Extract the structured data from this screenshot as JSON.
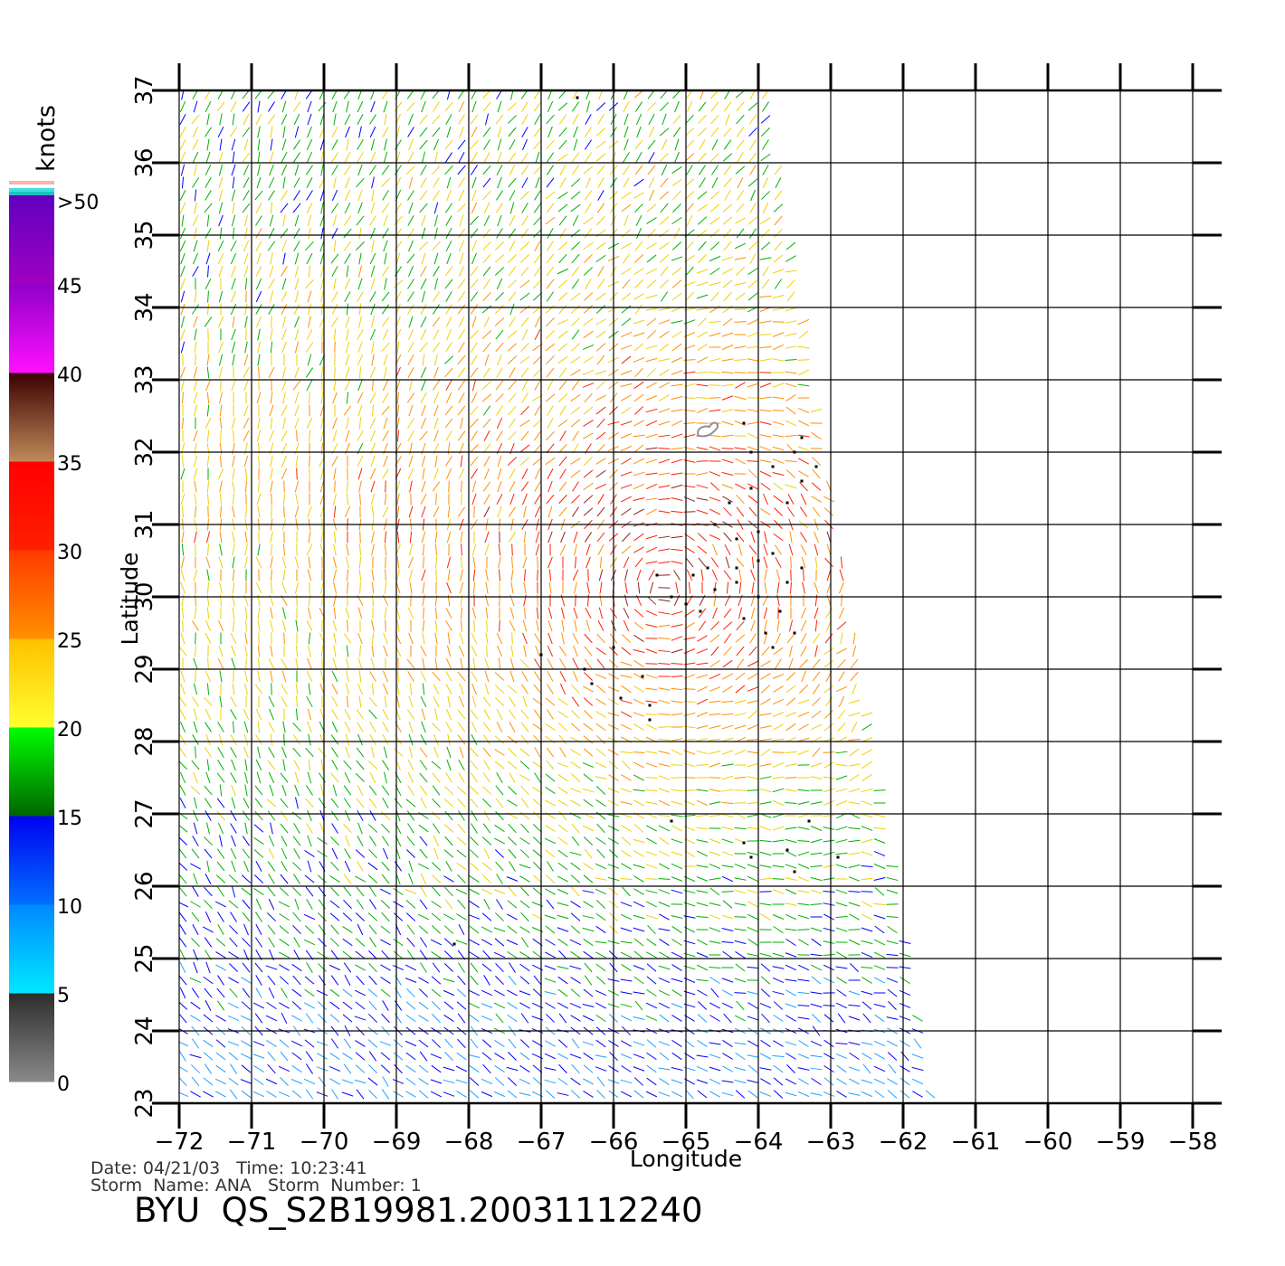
{
  "map": {
    "lon_range": [
      -72,
      -58
    ],
    "lat_range": [
      23,
      37
    ],
    "x_ticks": [
      "-72",
      "-71",
      "-70",
      "-69",
      "-68",
      "-67",
      "-66",
      "-65",
      "-64",
      "-63",
      "-62",
      "-61",
      "-60",
      "-59",
      "-58"
    ],
    "y_ticks": [
      "23",
      "24",
      "25",
      "26",
      "27",
      "28",
      "29",
      "30",
      "31",
      "32",
      "33",
      "34",
      "35",
      "36",
      "37"
    ],
    "xlabel": "Longitude",
    "ylabel": "Latitude",
    "swath_corners_lonlat": [
      [
        -72,
        37
      ],
      [
        -63.9,
        37
      ],
      [
        -61.6,
        23
      ],
      [
        -72,
        23
      ]
    ],
    "storm_center_lonlat": [
      -65.3,
      30.1
    ],
    "island_outline_lonlat": [
      -64.7,
      32.3
    ],
    "flagged_points_lonlat": [
      [
        -66.5,
        36.9
      ],
      [
        -68.2,
        25.2
      ],
      [
        -65.2,
        26.9
      ],
      [
        -64.2,
        26.6
      ],
      [
        -63.6,
        26.5
      ],
      [
        -63.3,
        26.9
      ],
      [
        -62.9,
        26.4
      ],
      [
        -63.5,
        26.2
      ],
      [
        -64.1,
        26.4
      ],
      [
        -66.0,
        29.3
      ],
      [
        -67.0,
        29.2
      ],
      [
        -66.4,
        29.0
      ],
      [
        -66.3,
        28.8
      ],
      [
        -65.9,
        28.6
      ],
      [
        -65.6,
        28.9
      ],
      [
        -65.5,
        28.5
      ],
      [
        -65.5,
        28.3
      ],
      [
        -64.2,
        32.4
      ],
      [
        -63.4,
        32.2
      ],
      [
        -63.8,
        31.8
      ],
      [
        -64.1,
        32.0
      ],
      [
        -63.5,
        32.0
      ],
      [
        -63.2,
        31.8
      ],
      [
        -64.1,
        31.5
      ],
      [
        -63.6,
        31.3
      ],
      [
        -63.4,
        31.6
      ],
      [
        -64.4,
        31.3
      ],
      [
        -64.6,
        31.0
      ],
      [
        -64.3,
        30.8
      ],
      [
        -64.0,
        30.9
      ],
      [
        -63.8,
        30.6
      ],
      [
        -64.0,
        30.5
      ],
      [
        -64.3,
        30.4
      ],
      [
        -64.7,
        30.4
      ],
      [
        -64.9,
        30.3
      ],
      [
        -65.4,
        30.3
      ],
      [
        -65.2,
        30.0
      ],
      [
        -64.6,
        30.1
      ],
      [
        -64.3,
        30.2
      ],
      [
        -64.0,
        30.0
      ],
      [
        -63.6,
        30.2
      ],
      [
        -63.4,
        30.4
      ],
      [
        -64.2,
        29.7
      ],
      [
        -63.7,
        29.8
      ],
      [
        -63.5,
        29.5
      ],
      [
        -63.9,
        29.5
      ],
      [
        -65.0,
        29.9
      ],
      [
        -64.8,
        29.8
      ],
      [
        -63.8,
        29.3
      ]
    ]
  },
  "legend": {
    "unit": "knots",
    "bands": [
      {
        "label": "0",
        "colors": [
          "#8a8a8a",
          "#2c2c2c"
        ]
      },
      {
        "label": "5",
        "colors": [
          "#00e8ff",
          "#0088ff"
        ]
      },
      {
        "label": "10",
        "colors": [
          "#0070ff",
          "#0000ee"
        ]
      },
      {
        "label": "15",
        "colors": [
          "#006400",
          "#00ff00"
        ]
      },
      {
        "label": "20",
        "colors": [
          "#ffff30",
          "#ffc000"
        ]
      },
      {
        "label": "25",
        "colors": [
          "#ff9000",
          "#ff3a00"
        ]
      },
      {
        "label": "30",
        "colors": [
          "#ff2000",
          "#ff0000"
        ]
      },
      {
        "label": "35",
        "colors": [
          "#c08a5a",
          "#3a0000"
        ]
      },
      {
        "label": "40",
        "colors": [
          "#ff10ff",
          "#9000c8"
        ]
      },
      {
        "label": "45",
        "colors": [
          "#a000c0",
          "#6000c0"
        ]
      }
    ],
    "over_label": ">50",
    "over_colors": [
      "#ffb0b0",
      "#ffffff",
      "#40e0e0",
      "#20c0c0"
    ]
  },
  "footer": {
    "line1": "Date: 04/21/03   Time: 10:23:41",
    "line2": "Storm  Name: ANA   Storm  Number: 1",
    "title": "BYU  QS_S2B19981.20031112240"
  }
}
